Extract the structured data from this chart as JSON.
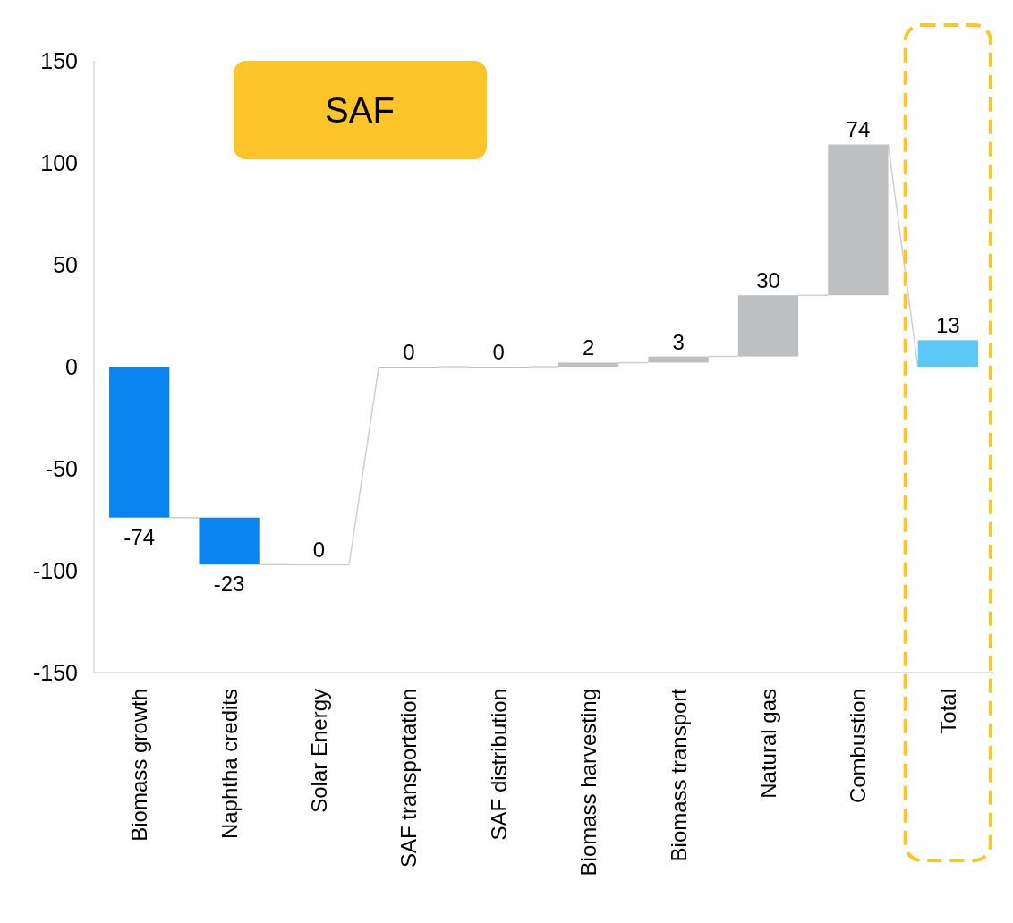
{
  "chart_data": {
    "type": "bar",
    "title": "SAF",
    "categories": [
      "Biomass growth",
      "Naphtha credits",
      "Solar Energy",
      "SAF transportation",
      "SAF distribution",
      "Biomass harvesting",
      "Biomass transport",
      "Natural gas",
      "Combustion",
      "Total"
    ],
    "values": [
      -74,
      -23,
      0,
      0,
      0,
      2,
      3,
      30,
      74,
      13
    ],
    "base": [
      0,
      -74,
      -97,
      0,
      0,
      0,
      2,
      5,
      35,
      0
    ],
    "colors": [
      "#0a84f0",
      "#0a84f0",
      "#bebfc1",
      "#bebfc1",
      "#bebfc1",
      "#bebfc1",
      "#bebfc1",
      "#bebfc1",
      "#bebfc1",
      "#5bc8f5"
    ],
    "ylim": [
      -150,
      150
    ],
    "yticks": [
      -150,
      -100,
      -50,
      0,
      50,
      100,
      150
    ],
    "data_labels": true,
    "grid": false
  }
}
